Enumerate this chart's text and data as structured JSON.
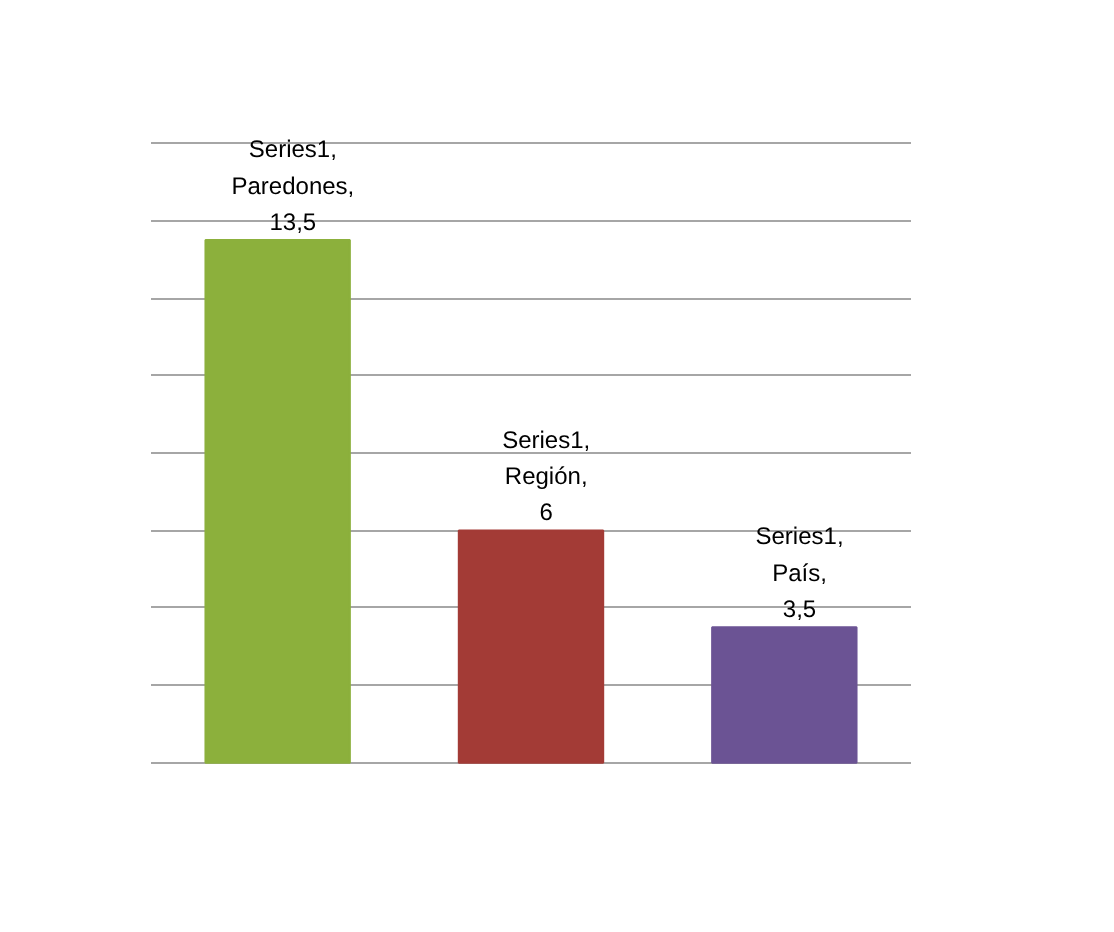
{
  "chart_data": {
    "type": "bar",
    "categories": [
      null,
      null,
      null
    ],
    "values": [
      13.5,
      6,
      3.5
    ],
    "colors": [
      "#8cb03c",
      "#a33b36",
      "#6b5394"
    ],
    "value_labels": [
      "Series1, Paredones, 13,5",
      "Series1, Región, 6",
      "Series1, País, 3,5"
    ],
    "yticks": [
      {
        "value": 0,
        "label": null
      },
      {
        "value": 2,
        "label": null
      },
      {
        "value": 4,
        "label": null
      },
      {
        "value": 6,
        "label": null
      },
      {
        "value": 8,
        "label": null
      },
      {
        "value": 10,
        "label": null
      },
      {
        "value": 12,
        "label": null
      },
      {
        "value": 14,
        "label": null
      },
      {
        "value": 16,
        "label": null
      }
    ],
    "grid": "y"
  }
}
